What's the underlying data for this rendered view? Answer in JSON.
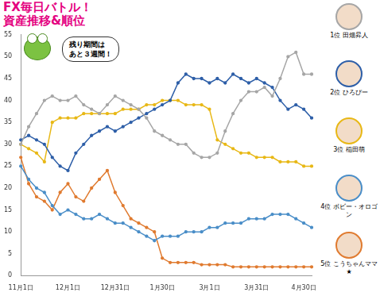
{
  "chart_data": {
    "type": "line",
    "title": "FX毎日バトル！\n資産推移&順位",
    "annotations": [
      {
        "text": "残り期間は\nあと３週間！"
      }
    ],
    "categories": [
      "11月1日",
      null,
      null,
      null,
      null,
      null,
      "12月1日",
      null,
      null,
      null,
      null,
      null,
      "12月31日",
      null,
      null,
      null,
      null,
      null,
      "1月30日",
      null,
      null,
      null,
      null,
      null,
      "3月1日",
      null,
      null,
      null,
      null,
      null,
      "3月31日",
      null,
      null,
      null,
      null,
      null,
      "4月30日",
      null
    ],
    "series": [
      {
        "name": "1位 田畑昇人",
        "color": "#a6a6a6",
        "values": [
          30,
          34,
          37,
          40,
          41,
          40,
          40,
          41,
          39,
          38,
          37,
          39,
          41,
          40,
          39,
          38,
          36,
          33,
          32,
          31,
          30,
          30,
          28,
          27,
          27,
          28,
          33,
          37,
          40,
          42,
          42,
          43,
          41,
          45,
          50,
          51,
          46,
          46
        ]
      },
      {
        "name": "2位 ひろぴー",
        "color": "#2e5fa8",
        "values": [
          31,
          32,
          31,
          30,
          27,
          25,
          24,
          28,
          30,
          32,
          33,
          34,
          33,
          34,
          35,
          36,
          37,
          38,
          39,
          40,
          44,
          46,
          45,
          45,
          44,
          45,
          44,
          46,
          45,
          44,
          45,
          44,
          43,
          40,
          38,
          39,
          38,
          36
        ]
      },
      {
        "name": "3位 稲田萌",
        "color": "#e8b816",
        "values": [
          30,
          29,
          28,
          26,
          35,
          36,
          36,
          36,
          37,
          37,
          37,
          37,
          37,
          38,
          38,
          38,
          39,
          39,
          40,
          40,
          40,
          39,
          39,
          39,
          38,
          31,
          30,
          29,
          28,
          28,
          27,
          27,
          27,
          26,
          26,
          26,
          25,
          25
        ]
      },
      {
        "name": "4位 ボビー・オロゴン",
        "color": "#4a8ec8",
        "values": [
          25,
          22,
          20,
          19,
          16,
          14,
          15,
          14,
          13,
          13,
          14,
          13,
          12,
          12,
          11,
          10,
          9,
          8,
          9,
          9,
          9,
          10,
          10,
          10,
          11,
          11,
          12,
          12,
          12,
          13,
          13,
          13,
          14,
          14,
          14,
          13,
          12,
          11
        ]
      },
      {
        "name": "5位 こうちゃんママ★",
        "color": "#e07b30",
        "values": [
          27,
          21,
          18,
          17,
          15,
          19,
          21,
          18,
          17,
          20,
          22,
          24,
          19,
          16,
          13,
          12,
          11,
          10,
          4,
          3,
          3,
          3,
          3,
          2.5,
          2.5,
          2.5,
          2.5,
          2,
          2,
          2,
          2,
          2,
          2,
          2,
          2,
          2,
          2,
          2
        ]
      }
    ],
    "ylim": [
      0,
      55
    ],
    "yticks": [
      0,
      5,
      10,
      15,
      20,
      25,
      30,
      35,
      40,
      45,
      50,
      55
    ],
    "grid": false,
    "legend": "right",
    "marker": "circle"
  }
}
